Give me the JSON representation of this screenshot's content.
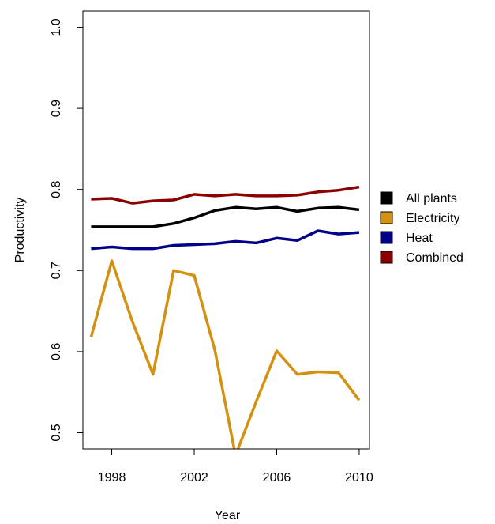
{
  "chart_data": {
    "type": "line",
    "title": "",
    "xlabel": "Year",
    "ylabel": "Productivity",
    "xlim": [
      1996.6,
      2010.5
    ],
    "ylim": [
      0.48,
      1.02
    ],
    "x_ticks": [
      1998,
      2002,
      2006,
      2010
    ],
    "y_ticks": [
      0.5,
      0.6,
      0.7,
      0.8,
      0.9,
      1.0
    ],
    "x_tick_labels": [
      "1998",
      "2002",
      "2006",
      "2010"
    ],
    "y_tick_labels": [
      "0.5",
      "0.6",
      "0.7",
      "0.8",
      "0.9",
      "1.0"
    ],
    "x": [
      1997,
      1998,
      1999,
      2000,
      2001,
      2002,
      2003,
      2004,
      2005,
      2006,
      2007,
      2008,
      2009,
      2010
    ],
    "series": [
      {
        "name": "All plants",
        "color": "#000000",
        "values": [
          0.754,
          0.754,
          0.754,
          0.754,
          0.758,
          0.765,
          0.774,
          0.778,
          0.776,
          0.778,
          0.773,
          0.777,
          0.778,
          0.775
        ]
      },
      {
        "name": "Electricity",
        "color": "#d4900f",
        "values": [
          0.618,
          0.712,
          0.637,
          0.572,
          0.7,
          0.694,
          0.602,
          0.472,
          0.538,
          0.601,
          0.572,
          0.575,
          0.574,
          0.54
        ]
      },
      {
        "name": "Heat",
        "color": "#00008b",
        "values": [
          0.727,
          0.729,
          0.727,
          0.727,
          0.731,
          0.732,
          0.733,
          0.736,
          0.734,
          0.74,
          0.737,
          0.749,
          0.745,
          0.747
        ]
      },
      {
        "name": "Combined",
        "color": "#8b0000",
        "values": [
          0.788,
          0.789,
          0.783,
          0.786,
          0.787,
          0.794,
          0.792,
          0.794,
          0.792,
          0.792,
          0.793,
          0.797,
          0.799,
          0.803
        ]
      }
    ],
    "grid": false,
    "legend_position": "right"
  }
}
